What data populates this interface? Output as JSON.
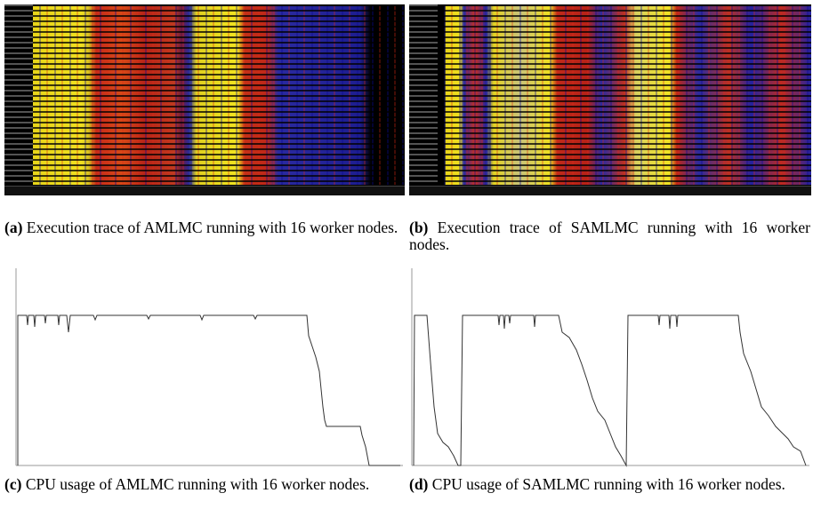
{
  "panels": [
    {
      "label": "(a)",
      "caption": "Execution trace of AMLMC running with 16 worker nodes."
    },
    {
      "label": "(b)",
      "caption": "Execution trace of SAMLMC running with 16 worker nodes."
    },
    {
      "label": "(c)",
      "caption": "CPU usage of AMLMC running with 16 worker nodes."
    },
    {
      "label": "(d)",
      "caption": "CPU usage of SAMLMC running with 16 worker nodes."
    }
  ]
}
